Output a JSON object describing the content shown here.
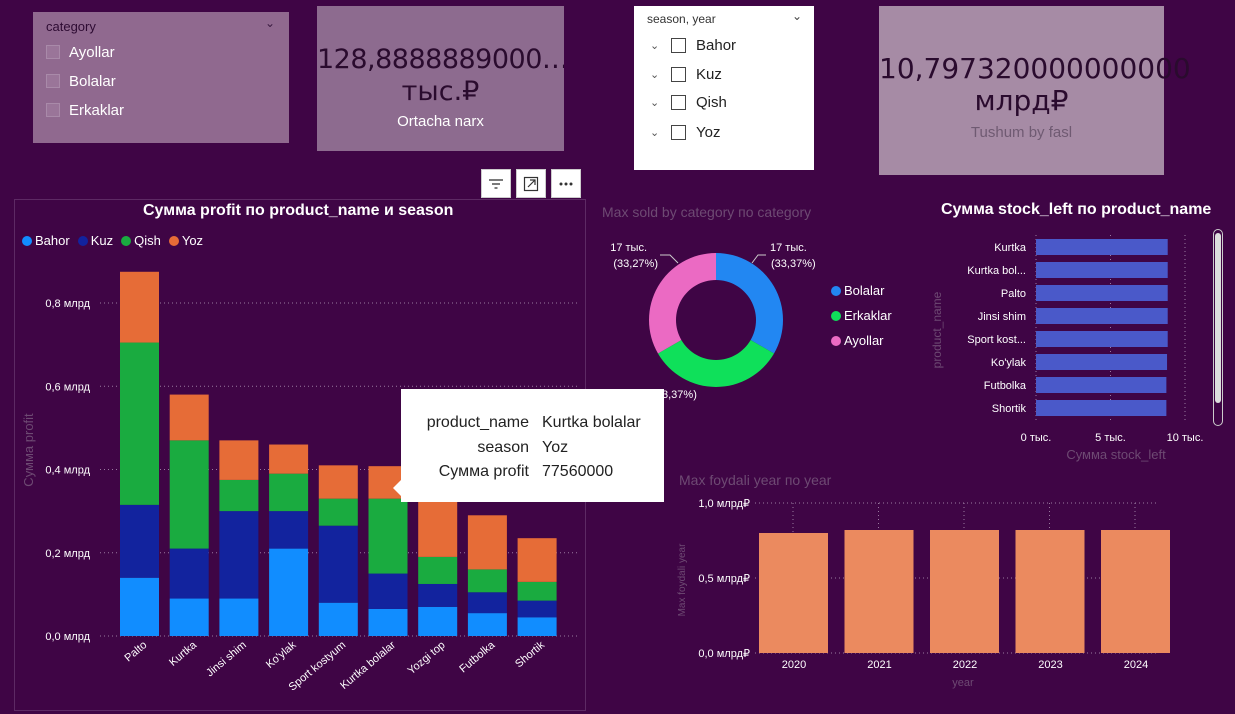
{
  "category_slicer": {
    "header": "category",
    "items": [
      "Ayollar",
      "Bolalar",
      "Erkaklar"
    ]
  },
  "card_avg_price": {
    "value_line1": "128,8888889000…",
    "value_line2": "тыс.₽",
    "label": "Ortacha narx"
  },
  "season_slicer": {
    "header": "season, year",
    "items": [
      "Bahor",
      "Kuz",
      "Qish",
      "Yoz"
    ]
  },
  "card_revenue": {
    "value_line1": "10,797320000000000",
    "value_line2": "млрд₽",
    "label": "Tushum by fasl"
  },
  "toolbar": {
    "filter_icon": "filter-icon",
    "focus_icon": "focus-mode-icon",
    "more_icon": "more-options-icon"
  },
  "profit_chart": {
    "title": "Сумма profit по product_name и season",
    "ylabel": "Сумма profit",
    "legend": [
      "Bahor",
      "Kuz",
      "Qish",
      "Yoz"
    ]
  },
  "donut_chart": {
    "title": "Max sold by category по category",
    "label_left_line1": "17 тыс.",
    "label_left_line2": "(33,27%)",
    "label_right_line1": "17 тыс.",
    "label_right_line2": "(33,37%)",
    "label_bottom": "3,37%)",
    "legend": [
      "Bolalar",
      "Erkaklar",
      "Ayollar"
    ]
  },
  "stock_chart": {
    "title": "Сумма stock_left по product_name",
    "ylabel": "product_name",
    "xlabel": "Сумма stock_left"
  },
  "year_chart": {
    "title": "Max foydali year по year",
    "ylabel": "Max foydali year",
    "xlabel": "year"
  },
  "tooltip": {
    "rows": [
      {
        "key": "product_name",
        "value": "Kurtka bolalar"
      },
      {
        "key": "season",
        "value": "Yoz"
      },
      {
        "key": "Сумма profit",
        "value": "77560000"
      }
    ]
  },
  "colors": {
    "background": "#3f0545",
    "bahor": "#118dff",
    "kuz": "#12239e",
    "qish": "#1aab40",
    "yoz": "#e66c37",
    "donut_bolalar": "#2287f2",
    "donut_erkaklar": "#0fe05a",
    "donut_ayollar": "#eb6ac3",
    "stock_bar": "#4a59c9",
    "year_bar": "#eb8a5f"
  },
  "chart_data": [
    {
      "type": "bar",
      "stacked": true,
      "title": "Сумма profit по product_name и season",
      "xlabel": "",
      "ylabel": "Сумма profit",
      "ylim": [
        0,
        0.9
      ],
      "y_unit": "млрд",
      "y_ticks": [
        "0,0 млрд",
        "0,2 млрд",
        "0,4 млрд",
        "0,6 млрд",
        "0,8 млрд"
      ],
      "y_tick_values": [
        0,
        0.2,
        0.4,
        0.6,
        0.8
      ],
      "categories": [
        "Palto",
        "Kurtka",
        "Jinsi shim",
        "Ko'ylak",
        "Sport kostyum",
        "Kurtka bolalar",
        "Yozgi top",
        "Futbolka",
        "Shortik"
      ],
      "series": [
        {
          "name": "Bahor",
          "values": [
            0.14,
            0.09,
            0.09,
            0.21,
            0.08,
            0.065,
            0.07,
            0.055,
            0.045
          ]
        },
        {
          "name": "Kuz",
          "values": [
            0.175,
            0.12,
            0.21,
            0.09,
            0.185,
            0.085,
            0.055,
            0.05,
            0.04
          ]
        },
        {
          "name": "Qish",
          "values": [
            0.39,
            0.26,
            0.075,
            0.09,
            0.065,
            0.18,
            0.065,
            0.055,
            0.045
          ]
        },
        {
          "name": "Yoz",
          "values": [
            0.17,
            0.11,
            0.095,
            0.07,
            0.08,
            0.078,
            0.145,
            0.13,
            0.105
          ]
        }
      ],
      "legend_position": "top-left",
      "grid": true
    },
    {
      "type": "pie",
      "donut": true,
      "title": "Max sold by category по category",
      "categories": [
        "Bolalar",
        "Erkaklar",
        "Ayollar"
      ],
      "values": [
        17,
        17,
        17
      ],
      "percent": [
        33.37,
        33.37,
        33.27
      ],
      "unit": "тыс.",
      "legend_position": "right"
    },
    {
      "type": "bar",
      "orientation": "horizontal",
      "title": "Сумма stock_left по product_name",
      "xlabel": "Сумма stock_left",
      "ylabel": "product_name",
      "categories": [
        "Kurtka",
        "Kurtka bol...",
        "Palto",
        "Jinsi shim",
        "Sport kost...",
        "Ko'ylak",
        "Futbolka",
        "Shortik"
      ],
      "values": [
        9.3,
        9.3,
        9.3,
        9.3,
        9.3,
        9.25,
        9.2,
        9.2
      ],
      "x_ticks": [
        "0 тыс.",
        "5 тыс.",
        "10 тыс."
      ],
      "x_tick_values": [
        0,
        5,
        10
      ],
      "xlim": [
        0,
        10
      ],
      "grid": true
    },
    {
      "type": "bar",
      "title": "Max foydali year по year",
      "xlabel": "year",
      "ylabel": "Max foydali year",
      "categories": [
        "2020",
        "2021",
        "2022",
        "2023",
        "2024"
      ],
      "values": [
        0.8,
        0.82,
        0.82,
        0.82,
        0.82
      ],
      "ylim": [
        0,
        1.0
      ],
      "y_ticks": [
        "0,0 млрд₽",
        "0,5 млрд₽",
        "1,0 млрд₽"
      ],
      "y_tick_values": [
        0,
        0.5,
        1.0
      ],
      "grid": true
    }
  ]
}
